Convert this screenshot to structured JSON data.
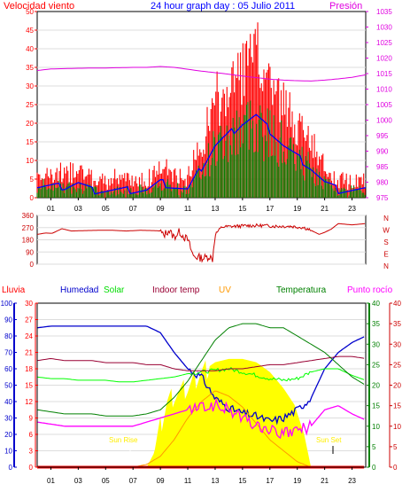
{
  "header": {
    "left_title": "Velocidad viento",
    "center_title": "24 hour graph day : 05 Julio 2011",
    "right_title": "Presión"
  },
  "x_ticks": [
    "01",
    "03",
    "05",
    "07",
    "09",
    "11",
    "13",
    "15",
    "17",
    "19",
    "21",
    "23"
  ],
  "wind_panel": {
    "left_ticks": [
      "0",
      "5",
      "10",
      "15",
      "20",
      "25",
      "30",
      "35",
      "40",
      "45",
      "50"
    ],
    "right_ticks": [
      "975",
      "980",
      "985",
      "990",
      "995",
      "1000",
      "1005",
      "1010",
      "1015",
      "1020",
      "1025",
      "1030",
      "1035"
    ]
  },
  "dir_panel": {
    "left_ticks": [
      "0",
      "90",
      "180",
      "270",
      "360"
    ],
    "compass": [
      "N",
      "W",
      "S",
      "E",
      "N"
    ]
  },
  "bottom_panel": {
    "headers": {
      "rain": "Lluvia",
      "humidity": "Humedad",
      "solar": "Solar",
      "indoor": "Indoor temp",
      "uv": "UV",
      "temperature": "Temperatura",
      "dewpoint": "Punto rocío"
    },
    "humidity_ticks": [
      "0",
      "10",
      "20",
      "30",
      "40",
      "50",
      "60",
      "70",
      "80",
      "90",
      "100"
    ],
    "rain_ticks": [
      "0",
      "3",
      "6",
      "9",
      "12",
      "15",
      "18",
      "21",
      "24",
      "27",
      "30"
    ],
    "temp_ticks": [
      "0",
      "5",
      "10",
      "15",
      "20",
      "25",
      "30",
      "35",
      "40"
    ],
    "dew_ticks": [
      "0",
      "5",
      "10",
      "15",
      "20",
      "25",
      "30",
      "35",
      "40"
    ],
    "sunrise_label": "Sun Rise",
    "sunset_label": "Sun Set"
  },
  "colors": {
    "wind_gust": "#ff0000",
    "wind_avg": "#0000ff",
    "wind_speed": "#008000",
    "pressure": "#e000e0",
    "direction": "#cc0000",
    "humidity": "#0000cc",
    "solar": "#00ff00",
    "indoor": "#990033",
    "uv": "#ff9900",
    "temperature": "#008000",
    "dewpoint": "#ff00ff",
    "sun": "#ffff00",
    "rain": "#ff0000"
  },
  "chart_data": [
    {
      "type": "line",
      "xlabel": "",
      "x_range_hours": [
        0,
        24
      ],
      "series": [
        {
          "name": "Velocidad viento",
          "x": [
            0,
            1,
            2,
            3,
            4,
            5,
            6,
            7,
            8,
            9,
            10,
            11,
            12,
            13,
            14,
            15,
            16,
            17,
            18,
            19,
            20,
            21,
            22,
            23,
            24
          ],
          "values": [
            3,
            3,
            3,
            4,
            2,
            2,
            2,
            2,
            2,
            4,
            3,
            2,
            8,
            14,
            17,
            20,
            22,
            18,
            14,
            11,
            8,
            4,
            2,
            2,
            2
          ]
        },
        {
          "name": "Presión",
          "x": [
            0,
            1,
            2,
            3,
            4,
            5,
            6,
            7,
            8,
            9,
            10,
            11,
            12,
            13,
            14,
            15,
            16,
            17,
            18,
            19,
            20,
            21,
            22,
            23,
            24
          ],
          "values": [
            1016,
            1016.5,
            1016.6,
            1016.7,
            1016.8,
            1016.8,
            1016.9,
            1017,
            1017,
            1017.3,
            1017,
            1016.4,
            1015.8,
            1015.3,
            1014.8,
            1014.2,
            1013.7,
            1013.2,
            1012.9,
            1012.7,
            1012.6,
            1012.9,
            1013.3,
            1013.8,
            1014.6
          ]
        }
      ],
      "ylim_left": [
        0,
        50
      ],
      "ylim_right": [
        975,
        1035
      ],
      "legend": "top"
    },
    {
      "type": "line",
      "x_range_hours": [
        0,
        24
      ],
      "series": [
        {
          "x": [
            0,
            0.6,
            1.1,
            1.8,
            2.5,
            3.5,
            4.5,
            5.5,
            6.5,
            7.5,
            8.5,
            9.0,
            9.2,
            9.6,
            10.0,
            10.4,
            10.8,
            11.0,
            11.4,
            11.8,
            12.2,
            12.6,
            12.8,
            13.0,
            13.5,
            14.5,
            15.5,
            16.5,
            17.5,
            18.5,
            19.0,
            19.5,
            20.0,
            20.6,
            21.0,
            21.5,
            22.0,
            23.0,
            24.0
          ],
          "values": [
            220,
            230,
            228,
            262,
            245,
            248,
            250,
            250,
            245,
            250,
            248,
            245,
            210,
            250,
            200,
            240,
            195,
            180,
            60,
            50,
            45,
            60,
            30,
            220,
            275,
            280,
            285,
            285,
            280,
            280,
            275,
            270,
            250,
            220,
            235,
            260,
            300,
            290,
            300
          ]
        }
      ],
      "ylim": [
        0,
        360
      ]
    },
    {
      "type": "area",
      "x_range_hours": [
        0,
        24
      ],
      "series": [
        {
          "name": "Humedad",
          "axis": "humidity",
          "x": [
            0,
            1,
            2,
            3,
            4,
            5,
            6,
            7,
            8,
            9,
            10,
            11,
            12,
            13,
            14,
            15,
            16,
            17,
            18,
            19,
            20,
            21,
            22,
            23,
            24
          ],
          "values": [
            85,
            86,
            86,
            86,
            86,
            86,
            86,
            86,
            86,
            82,
            70,
            60,
            55,
            42,
            36,
            33,
            31,
            28,
            30,
            35,
            42,
            60,
            70,
            76,
            80
          ]
        },
        {
          "name": "Solar",
          "axis": "humidity",
          "x": [
            0,
            1,
            2,
            3,
            4,
            5,
            6,
            7,
            8,
            9,
            10,
            11,
            12,
            13,
            14,
            15,
            16,
            17,
            18,
            19,
            20,
            21,
            22,
            23,
            24
          ],
          "values": [
            55,
            54,
            54,
            53,
            53,
            53,
            52,
            52,
            53,
            54,
            55,
            57,
            58,
            59,
            60,
            58,
            56,
            54,
            53,
            54,
            58,
            60,
            60,
            56,
            53
          ]
        },
        {
          "name": "Indoor temp",
          "axis": "temperature",
          "x": [
            0,
            1,
            2,
            3,
            4,
            5,
            6,
            7,
            8,
            9,
            10,
            11,
            12,
            13,
            14,
            15,
            16,
            17,
            18,
            19,
            20,
            21,
            22,
            23,
            24
          ],
          "values": [
            26,
            26.5,
            26,
            26,
            26,
            25.5,
            25.5,
            25.5,
            25,
            25,
            24,
            23.5,
            23.5,
            23.5,
            24,
            24,
            24.5,
            25,
            25,
            25.5,
            26,
            26.5,
            27,
            27,
            26.5
          ]
        },
        {
          "name": "UV",
          "axis": "rain",
          "x": [
            0,
            6,
            7,
            8,
            9,
            10,
            11,
            12,
            13,
            14,
            15,
            16,
            17,
            18,
            19,
            20,
            24
          ],
          "values": [
            0,
            0,
            0,
            0.5,
            2,
            5,
            9,
            12,
            14,
            13,
            11,
            8,
            5,
            3,
            1,
            0,
            0
          ]
        },
        {
          "name": "Temperatura",
          "axis": "temperature",
          "x": [
            0,
            1,
            2,
            3,
            4,
            5,
            6,
            7,
            8,
            9,
            10,
            11,
            12,
            13,
            14,
            15,
            16,
            17,
            18,
            19,
            20,
            21,
            22,
            23,
            24
          ],
          "values": [
            14,
            13.5,
            13,
            13,
            13,
            12.5,
            12.5,
            12.5,
            13,
            14,
            17,
            21,
            26,
            31,
            34,
            35,
            35,
            34,
            34,
            32,
            30,
            28,
            25,
            22,
            20
          ]
        },
        {
          "name": "Punto rocío",
          "axis": "temperature",
          "x": [
            0,
            1,
            2,
            3,
            4,
            5,
            6,
            7,
            8,
            9,
            10,
            11,
            12,
            13,
            14,
            15,
            16,
            17,
            18,
            19,
            20,
            21,
            22,
            23,
            24
          ],
          "values": [
            11,
            10.5,
            10,
            10,
            10,
            10,
            10,
            10,
            11,
            12,
            13,
            14,
            14.5,
            15,
            14,
            12,
            10,
            9,
            8,
            9,
            10,
            14,
            15,
            13,
            11.5
          ]
        },
        {
          "name": "sun",
          "axis": "humidity",
          "x": [
            0,
            8,
            8.5,
            9,
            9.5,
            10,
            11,
            12,
            13,
            14,
            15,
            16,
            17,
            18,
            18.8,
            19.5,
            20,
            24
          ],
          "values": [
            0,
            0,
            8,
            25,
            40,
            44,
            48,
            58,
            64,
            66,
            66,
            64,
            58,
            48,
            38,
            20,
            0,
            0
          ]
        },
        {
          "name": "Lluvia",
          "axis": "rain",
          "x": [
            0,
            24
          ],
          "values": [
            0,
            0
          ]
        }
      ],
      "ylim_humidity": [
        0,
        100
      ],
      "ylim_rain": [
        0,
        30
      ],
      "ylim_temperature": [
        0,
        40
      ],
      "ylim_dewpoint": [
        0,
        40
      ],
      "annotations": [
        "Sun Rise",
        "Sun Set"
      ]
    }
  ]
}
